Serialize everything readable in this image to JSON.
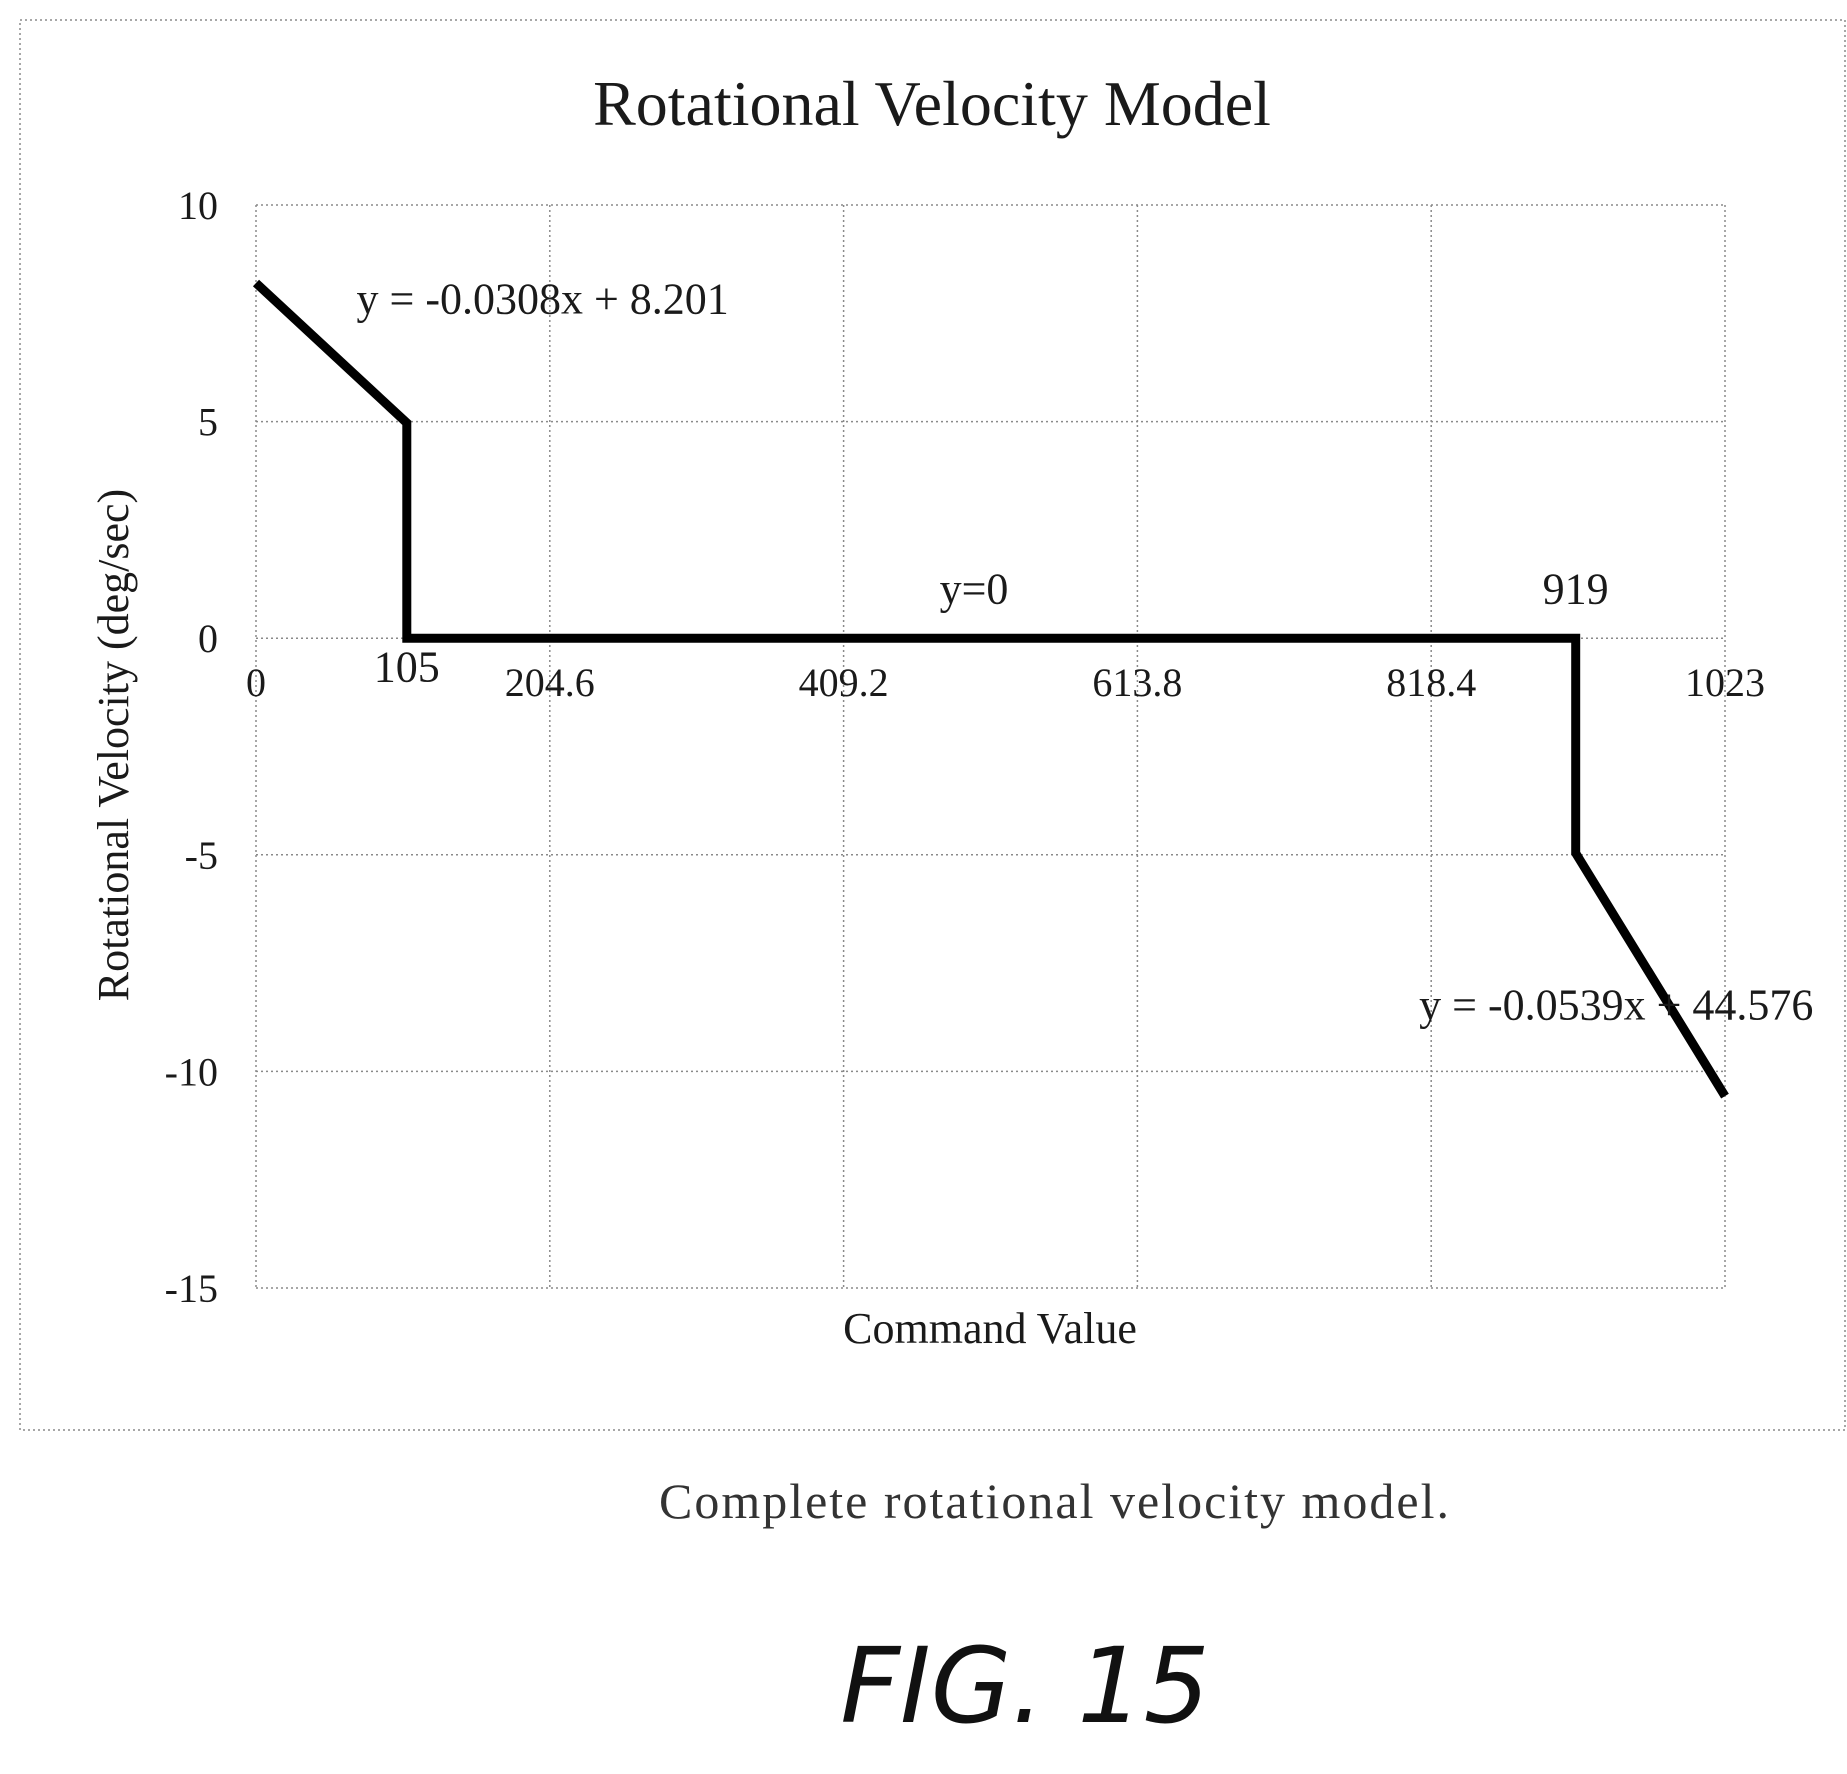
{
  "chart_data": {
    "type": "line",
    "title": "Rotational Velocity Model",
    "xlabel": "Command Value",
    "ylabel": "Rotational Velocity (deg/sec)",
    "xlim": [
      0,
      1023
    ],
    "ylim": [
      -15,
      10
    ],
    "grid": true,
    "x_ticks": [
      {
        "value": 0,
        "label": "0"
      },
      {
        "value": 204.6,
        "label": "204.6"
      },
      {
        "value": 409.2,
        "label": "409.2"
      },
      {
        "value": 613.8,
        "label": "613.8"
      },
      {
        "value": 818.4,
        "label": "818.4"
      },
      {
        "value": 1023,
        "label": "1023"
      }
    ],
    "y_ticks": [
      {
        "value": 10,
        "label": "10"
      },
      {
        "value": 5,
        "label": "5"
      },
      {
        "value": 0,
        "label": "0"
      },
      {
        "value": -5,
        "label": "-5"
      },
      {
        "value": -10,
        "label": "-10"
      },
      {
        "value": -15,
        "label": "-15"
      }
    ],
    "series": [
      {
        "x": [
          0,
          105,
          105,
          919,
          919,
          1023
        ],
        "y": [
          8.2,
          4.97,
          0,
          0,
          -4.96,
          -10.57
        ]
      }
    ],
    "annotations": [
      {
        "text": "y = -0.0308x + 8.201",
        "x": 70,
        "y": 7.5
      },
      {
        "text": "y=0",
        "x": 500,
        "y": 0.8
      },
      {
        "text": "105",
        "x": 105,
        "y": -1.0
      },
      {
        "text": "919",
        "x": 919,
        "y": 0.8
      },
      {
        "text": "y = -0.0539x + 44.576",
        "x": 810,
        "y": -8.8
      }
    ]
  },
  "caption": "Complete rotational velocity model.",
  "figure_label": "FIG. 15"
}
